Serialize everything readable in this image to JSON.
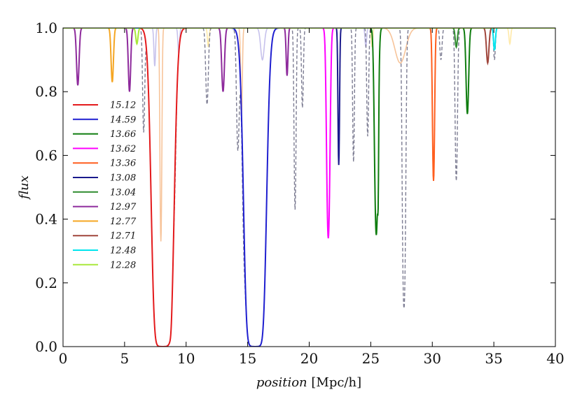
{
  "chart_data": {
    "type": "line",
    "title": "",
    "xlabel_italic": "position",
    "xlabel_unit": "[Mpc/h]",
    "ylabel": "flux",
    "xlim": [
      0,
      40
    ],
    "ylim": [
      0.0,
      1.0
    ],
    "xticks": [
      0,
      5,
      10,
      15,
      20,
      25,
      30,
      35,
      40
    ],
    "xtick_labels": [
      "0",
      "5",
      "10",
      "15",
      "20",
      "25",
      "30",
      "35",
      "40"
    ],
    "yticks": [
      0.0,
      0.2,
      0.4,
      0.6,
      0.8,
      1.0
    ],
    "ytick_labels": [
      "0.0",
      "0.2",
      "0.4",
      "0.6",
      "0.8",
      "1.0"
    ],
    "grid": false,
    "legend_position": "center-left",
    "series": [
      {
        "name": "15.12",
        "color": "#e41a1c",
        "absorbers": [
          [
            8.1,
            0.6,
            1.0
          ],
          [
            8.7,
            0.12,
            0.42
          ]
        ]
      },
      {
        "name": "14.59",
        "color": "#1f1fd0",
        "absorbers": [
          [
            15.6,
            0.6,
            1.0
          ]
        ]
      },
      {
        "name": "13.66",
        "color": "#0f7d0f",
        "absorbers": [
          [
            25.45,
            0.17,
            0.65
          ],
          [
            25.6,
            0.05,
            0.3
          ],
          [
            32.85,
            0.14,
            0.27
          ]
        ]
      },
      {
        "name": "13.62",
        "color": "#ff00ff",
        "absorbers": [
          [
            21.55,
            0.16,
            0.66
          ]
        ]
      },
      {
        "name": "13.36",
        "color": "#ff5f1f",
        "absorbers": [
          [
            30.1,
            0.11,
            0.48
          ]
        ]
      },
      {
        "name": "13.08",
        "color": "#1a1a8c",
        "absorbers": [
          [
            22.4,
            0.08,
            0.43
          ]
        ]
      },
      {
        "name": "13.04",
        "color": "#2e8b2e",
        "absorbers": [
          [
            31.95,
            0.12,
            0.06
          ]
        ]
      },
      {
        "name": "12.97",
        "color": "#8e2a9c",
        "absorbers": [
          [
            1.2,
            0.14,
            0.18
          ],
          [
            5.4,
            0.13,
            0.2
          ],
          [
            13.0,
            0.15,
            0.2
          ],
          [
            18.2,
            0.1,
            0.15
          ]
        ]
      },
      {
        "name": "12.77",
        "color": "#f5a623",
        "absorbers": [
          [
            4.0,
            0.13,
            0.17
          ]
        ]
      },
      {
        "name": "12.71",
        "color": "#a0463c",
        "absorbers": [
          [
            34.5,
            0.14,
            0.11
          ]
        ]
      },
      {
        "name": "12.48",
        "color": "#00e5ee",
        "absorbers": [
          [
            35.05,
            0.1,
            0.07
          ]
        ]
      },
      {
        "name": "12.28",
        "color": "#a8e83a",
        "absorbers": [
          [
            6.0,
            0.12,
            0.05
          ]
        ]
      }
    ],
    "faint_overlay": [
      {
        "color": "#f7c49a",
        "absorbers": [
          [
            7.95,
            0.09,
            0.67
          ],
          [
            14.5,
            0.09,
            0.27
          ],
          [
            27.4,
            0.6,
            0.11
          ]
        ]
      },
      {
        "color": "#c7c2ec",
        "absorbers": [
          [
            7.45,
            0.09,
            0.12
          ],
          [
            9.4,
            0.09,
            0.08
          ],
          [
            16.2,
            0.2,
            0.1
          ],
          [
            24.6,
            0.09,
            0.06
          ]
        ]
      },
      {
        "color": "#ffe9a8",
        "absorbers": [
          [
            11.8,
            0.09,
            0.06
          ],
          [
            25.1,
            0.09,
            0.06
          ],
          [
            36.3,
            0.1,
            0.05
          ]
        ]
      }
    ],
    "dashed_total": {
      "color": "#7c7c92",
      "absorbers": [
        [
          1.2,
          0.14,
          0.18
        ],
        [
          4.0,
          0.13,
          0.17
        ],
        [
          5.4,
          0.13,
          0.2
        ],
        [
          6.55,
          0.11,
          0.32
        ],
        [
          8.1,
          0.6,
          1.0
        ],
        [
          8.7,
          0.12,
          0.42
        ],
        [
          9.1,
          0.1,
          0.1
        ],
        [
          11.7,
          0.14,
          0.24
        ],
        [
          13.0,
          0.15,
          0.2
        ],
        [
          14.2,
          0.14,
          0.36
        ],
        [
          14.7,
          0.15,
          0.28
        ],
        [
          15.6,
          0.6,
          1.0
        ],
        [
          18.2,
          0.1,
          0.15
        ],
        [
          18.85,
          0.1,
          0.57
        ],
        [
          19.45,
          0.1,
          0.25
        ],
        [
          21.55,
          0.16,
          0.66
        ],
        [
          22.4,
          0.08,
          0.43
        ],
        [
          23.6,
          0.09,
          0.42
        ],
        [
          24.75,
          0.1,
          0.34
        ],
        [
          25.45,
          0.17,
          0.65
        ],
        [
          25.6,
          0.05,
          0.3
        ],
        [
          27.7,
          0.14,
          0.88
        ],
        [
          30.1,
          0.11,
          0.48
        ],
        [
          30.7,
          0.12,
          0.1
        ],
        [
          31.95,
          0.12,
          0.48
        ],
        [
          32.85,
          0.14,
          0.27
        ],
        [
          34.5,
          0.14,
          0.11
        ],
        [
          35.05,
          0.1,
          0.1
        ]
      ]
    }
  }
}
